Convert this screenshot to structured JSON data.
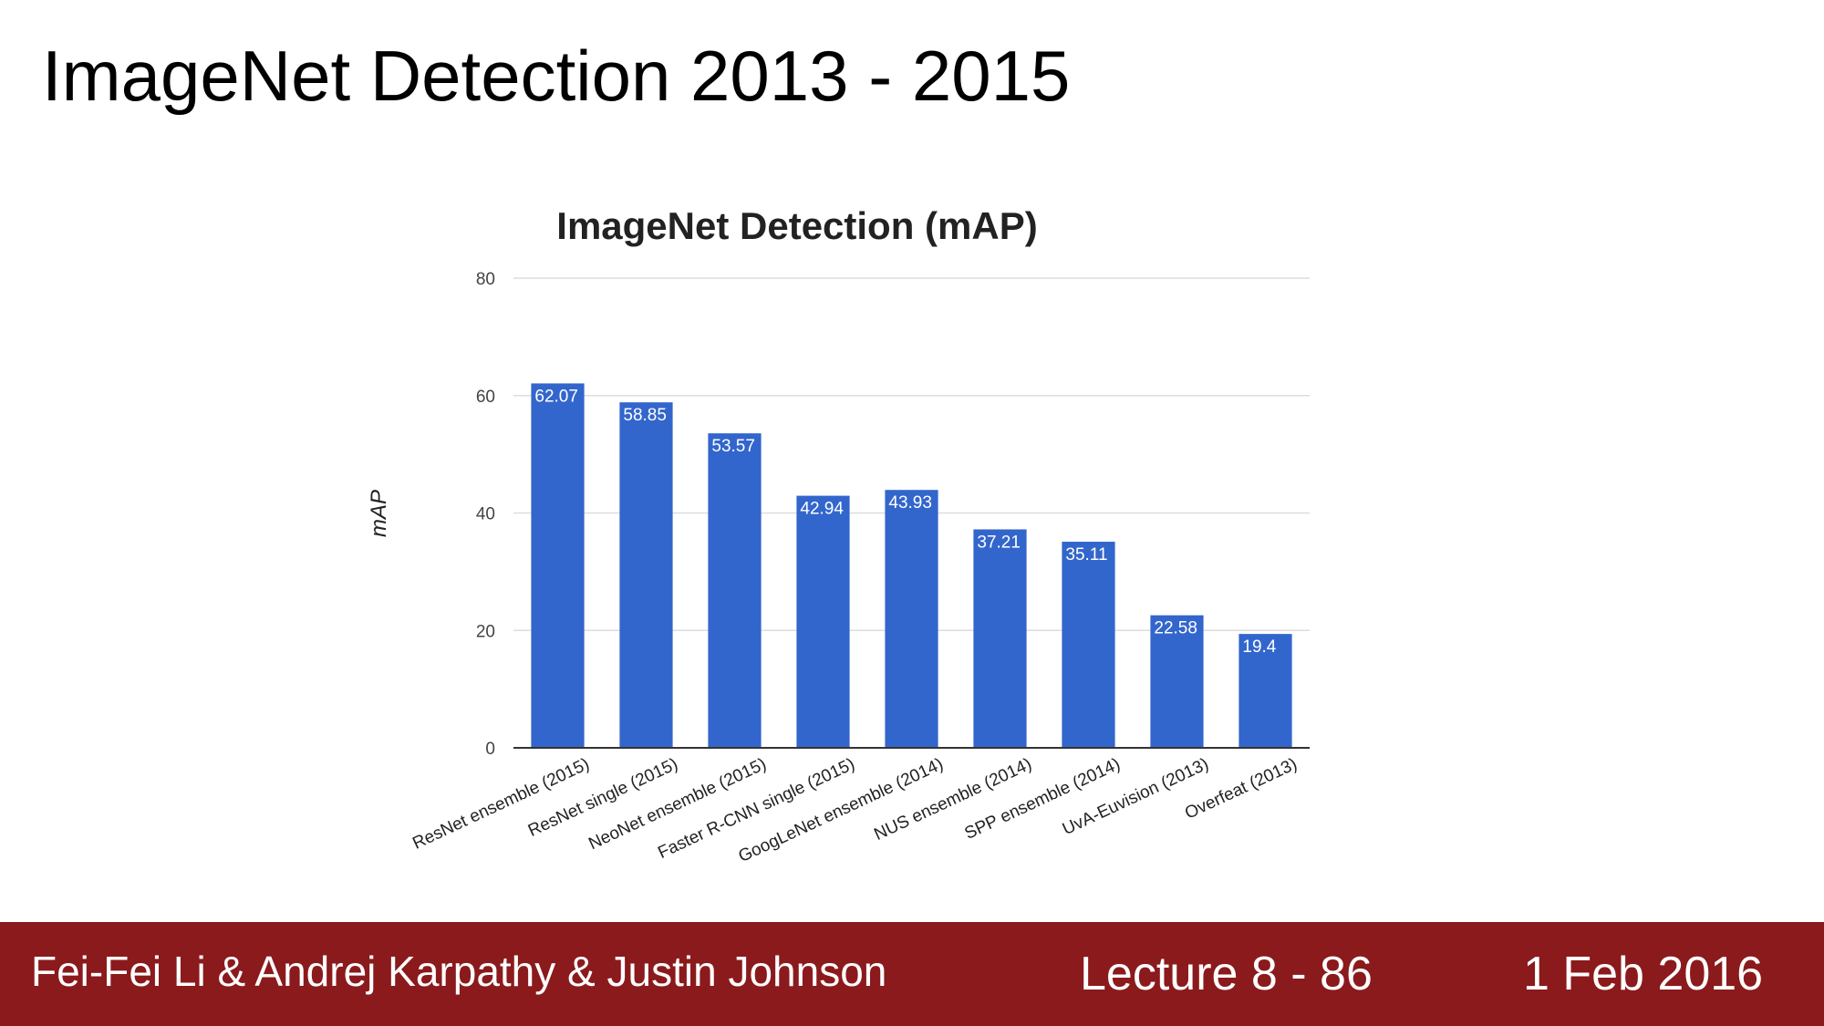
{
  "slide": {
    "title": "ImageNet Detection 2013 - 2015"
  },
  "footer": {
    "authors": "Fei-Fei Li & Andrej Karpathy & Justin Johnson",
    "lecture": "Lecture 8 - 86",
    "date": "1 Feb 2016"
  },
  "colors": {
    "bar": "#3366cc",
    "footer_background": "#8b1a1c",
    "grid": "#dddddd"
  },
  "chart_data": {
    "type": "bar",
    "title": "ImageNet Detection (mAP)",
    "ylabel": "mAP",
    "xlabel": "",
    "ylim": [
      0,
      80
    ],
    "yticks": [
      0,
      20,
      40,
      60,
      80
    ],
    "grid": true,
    "categories": [
      "ResNet ensemble (2015)",
      "ResNet single (2015)",
      "NeoNet ensemble (2015)",
      "Faster R-CNN single (2015)",
      "GoogLeNet ensemble (2014)",
      "NUS ensemble (2014)",
      "SPP ensemble (2014)",
      "UvA-Euvision (2013)",
      "Overfeat (2013)"
    ],
    "values": [
      62.07,
      58.85,
      53.57,
      42.94,
      43.93,
      37.21,
      35.11,
      22.58,
      19.4
    ],
    "data_labels": [
      "62.07",
      "58.85",
      "53.57",
      "42.94",
      "43.93",
      "37.21",
      "35.11",
      "22.58",
      "19.4"
    ]
  }
}
